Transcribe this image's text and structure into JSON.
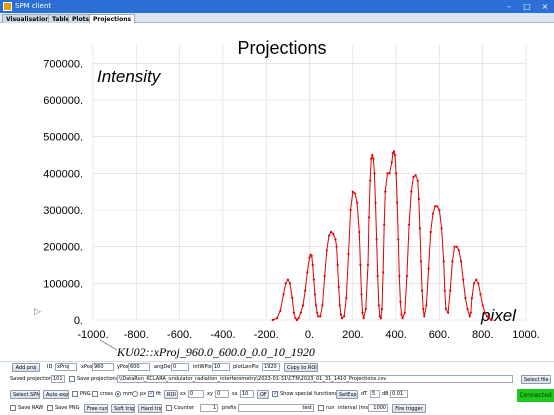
{
  "window": {
    "title": "SPM client",
    "minimize": "–",
    "maximize": "□",
    "close": "×"
  },
  "tabs": [
    {
      "label": "Visualisation",
      "active": false
    },
    {
      "label": "Table",
      "active": false
    },
    {
      "label": "Plots",
      "active": false
    },
    {
      "label": "Projections",
      "active": true
    }
  ],
  "chart_data": {
    "type": "line",
    "title": "Projections",
    "ylabel": "Intensity",
    "xlabel": "pixel",
    "annotation": "KU02::xProj_960.0_600.0_0.0_10_1920",
    "xlim": [
      -1000,
      1000
    ],
    "ylim": [
      0,
      750000
    ],
    "xticks": [
      "-1000.",
      "-800.",
      "-600.",
      "-400.",
      "-200.",
      "0.",
      "200.",
      "400.",
      "600.",
      "800.",
      "1000."
    ],
    "yticks": [
      "0.",
      "100000.",
      "200000.",
      "300000.",
      "400000.",
      "500000.",
      "600000.",
      "700000."
    ],
    "grid": true,
    "color": "#e00000",
    "x": [
      -170,
      -150,
      -135,
      -120,
      -110,
      -100,
      -90,
      -80,
      -72,
      -65,
      -58,
      -50,
      -40,
      -30,
      -20,
      -10,
      0,
      5,
      10,
      15,
      20,
      25,
      30,
      35,
      40,
      50,
      60,
      70,
      80,
      90,
      100,
      110,
      120,
      125,
      130,
      135,
      140,
      145,
      150,
      160,
      170,
      180,
      190,
      200,
      210,
      220,
      230,
      235,
      240,
      245,
      250,
      260,
      270,
      275,
      280,
      285,
      290,
      295,
      300,
      305,
      310,
      315,
      320,
      325,
      330,
      335,
      340,
      345,
      350,
      360,
      370,
      380,
      385,
      390,
      395,
      400,
      405,
      410,
      415,
      420,
      425,
      430,
      440,
      450,
      460,
      470,
      480,
      490,
      500,
      505,
      510,
      515,
      520,
      525,
      530,
      540,
      550,
      560,
      570,
      580,
      590,
      600,
      610,
      620,
      625,
      630,
      640,
      650,
      660,
      670,
      680,
      690,
      700,
      710,
      720,
      730,
      740,
      745,
      750,
      760,
      770,
      780,
      790,
      800,
      810,
      820,
      830,
      840
    ],
    "y": [
      0,
      5000,
      25000,
      70000,
      100000,
      110000,
      100000,
      60000,
      20000,
      5000,
      0,
      5000,
      20000,
      40000,
      80000,
      130000,
      170000,
      178000,
      175000,
      150000,
      110000,
      70000,
      40000,
      20000,
      10000,
      10000,
      40000,
      120000,
      190000,
      230000,
      240000,
      235000,
      220000,
      200000,
      150000,
      90000,
      40000,
      15000,
      5000,
      10000,
      60000,
      180000,
      300000,
      350000,
      345000,
      320000,
      240000,
      150000,
      70000,
      20000,
      5000,
      30000,
      150000,
      280000,
      380000,
      440000,
      450000,
      440000,
      400000,
      320000,
      220000,
      120000,
      40000,
      10000,
      5000,
      30000,
      130000,
      260000,
      350000,
      400000,
      400000,
      430000,
      455000,
      460000,
      450000,
      400000,
      320000,
      220000,
      120000,
      50000,
      15000,
      5000,
      20000,
      120000,
      260000,
      350000,
      390000,
      395000,
      380000,
      330000,
      250000,
      160000,
      80000,
      30000,
      10000,
      40000,
      140000,
      240000,
      290000,
      310000,
      310000,
      300000,
      250000,
      160000,
      80000,
      30000,
      20000,
      80000,
      160000,
      200000,
      200000,
      190000,
      160000,
      110000,
      60000,
      30000,
      10000,
      20000,
      60000,
      100000,
      110000,
      100000,
      70000,
      40000,
      20000,
      10000,
      5000,
      0
    ]
  },
  "row1": {
    "add_proj": "Add proj",
    "id_label": "ID",
    "id_value": "xProj",
    "xpos_label": "xPos",
    "xpos_value": "960",
    "ypos_label": "yPos",
    "ypos_value": "600",
    "angdeg_label": "angDeg",
    "angdeg_value": "0",
    "intwpix_label": "intWPix",
    "intwpix_value": "10",
    "plotlenpix_label": "plotLenPix",
    "plotlenpix_value": "1920",
    "copy_to_roi": "Copy to ROI"
  },
  "row2": {
    "saved_label": "Saved projections",
    "saved_value": "101",
    "save_projections": "Save projections",
    "path": "\\\\DataRun_KCLARA_undulator_radiation_interferometry\\2023-01-31\\CTN\\2023_01_31_1410_Projections.csv",
    "select_file": "Select file"
  },
  "row3": {
    "select_spms": "Select SPMs",
    "auto_exp": "Auto exp",
    "png": "PNG",
    "cross": "cross",
    "mm": "mm",
    "px": "px",
    "fit": "fit",
    "roi": "ROI",
    "xx_label": "xx",
    "xx_value": "0",
    "xy_label": "xy",
    "xy_value": "0",
    "sx_label": "sx",
    "sx_value": "10",
    "off_label": "OF",
    "show_special": "Show special functions",
    "set_exp": "SetExp",
    "dt_label": "dT",
    "dt_value": "5",
    "db_label": "dB",
    "db_value": "0.01"
  },
  "row4": {
    "save_raw": "Save RAW",
    "save_png": "Save PNG",
    "free_run": "Free run",
    "soft_trig": "Soft trig",
    "hard_trig": "Hard trig",
    "counter": "Counter",
    "counter_value": "1",
    "prefix_label": "prefix",
    "prefix_value": "test",
    "run_label": "run",
    "interval_label": "interval (ms)",
    "interval_value": "1000",
    "fire_trigger": "Fire trigger"
  },
  "status": {
    "connection": "Connected"
  }
}
